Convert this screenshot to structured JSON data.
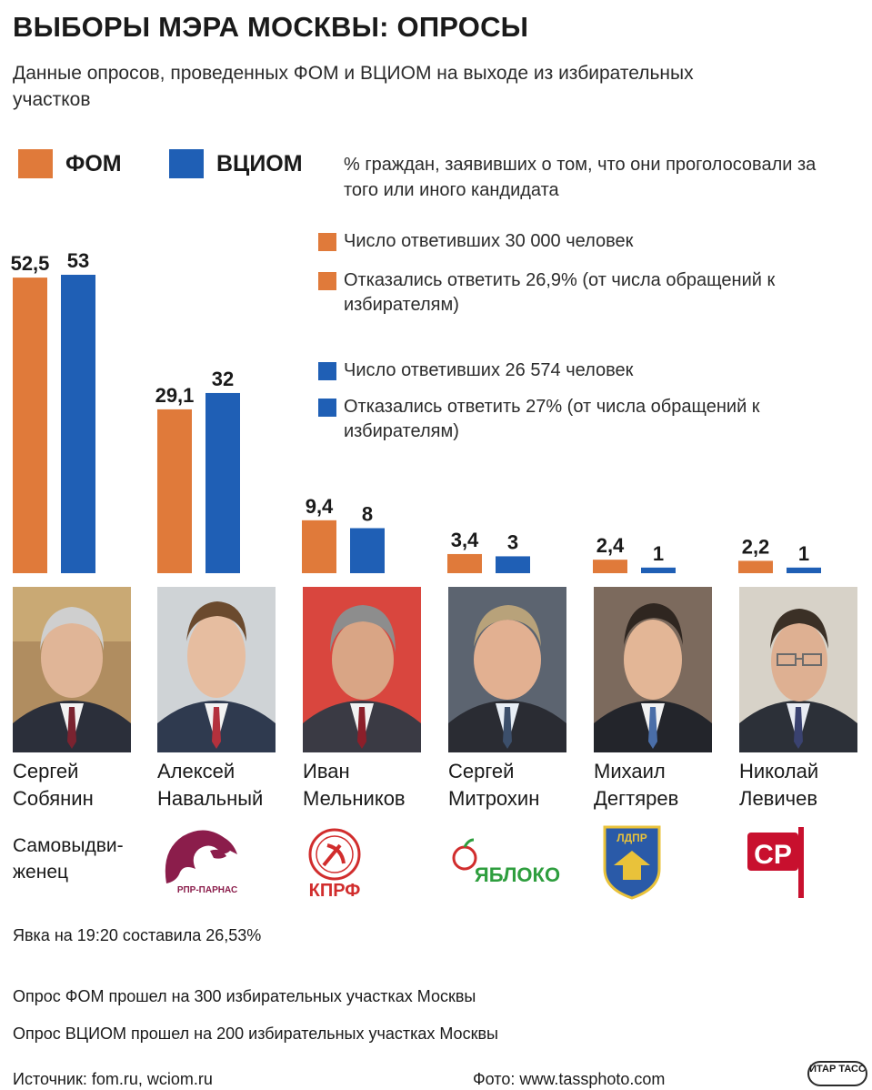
{
  "title": "ВЫБОРЫ МЭРА МОСКВЫ: ОПРОСЫ",
  "subtitle": "Данные опросов, проведенных ФОМ и ВЦИОМ на выходе из избирательных участков",
  "legend": {
    "fom_label": "ФОМ",
    "vciom_label": "ВЦИОМ",
    "caption": "% граждан, заявивших о том, что они проголосовали за того или иного кандидата"
  },
  "notes": {
    "fom_respondents": "Число ответивших 30 000 человек",
    "fom_refused": "Отказались ответить 26,9% (от числа обращений к избирателям)",
    "vciom_respondents": "Число ответивших 26 574 человек",
    "vciom_refused": "Отказались ответить 27% (от числа обращений к избирателям)"
  },
  "colors": {
    "fom": "#e07a3a",
    "vciom": "#1f5fb5"
  },
  "chart_data": {
    "type": "bar",
    "categories": [
      "Сергей Собянин",
      "Алексей Навальный",
      "Иван Мельников",
      "Сергей Митрохин",
      "Михаил Дегтярев",
      "Николай Левичев"
    ],
    "series": [
      {
        "name": "ФОМ",
        "values": [
          52.5,
          29.1,
          9.4,
          3.4,
          2.4,
          2.2
        ],
        "labels": [
          "52,5",
          "29,1",
          "9,4",
          "3,4",
          "2,4",
          "2,2"
        ]
      },
      {
        "name": "ВЦИОМ",
        "values": [
          53,
          32,
          8,
          3,
          1,
          1
        ],
        "labels": [
          "53",
          "32",
          "8",
          "3",
          "1",
          "1"
        ]
      }
    ],
    "ylim": [
      0,
      53
    ]
  },
  "candidates": [
    {
      "first": "Сергей",
      "last": "Собянин",
      "party": "Самовыдви-\nженец",
      "logo": "self-nominated"
    },
    {
      "first": "Алексей",
      "last": "Навальный",
      "party": "РПР-ПАРНАС",
      "logo": "rpr-parnas-logo"
    },
    {
      "first": "Иван",
      "last": "Мельников",
      "party": "КПРФ",
      "logo": "kprf-logo"
    },
    {
      "first": "Сергей",
      "last": "Митрохин",
      "party": "ЯБЛОКО",
      "logo": "yabloko-logo"
    },
    {
      "first": "Михаил",
      "last": "Дегтярев",
      "party": "ЛДПР",
      "logo": "ldpr-logo"
    },
    {
      "first": "Николай",
      "last": "Левичев",
      "party": "СР",
      "logo": "sr-logo"
    }
  ],
  "turnout": "Явка на 19:20 составила 26,53%",
  "fom_survey": "Опрос ФОМ прошел на 300 избирательных участках Москвы",
  "vciom_survey": "Опрос ВЦИОМ прошел на 200 избирательных участках Москвы",
  "source": "Источник: fom.ru, wciom.ru",
  "photo_credit": "Фото: www.tassphoto.com",
  "agency": "ИТАР ТАСС"
}
